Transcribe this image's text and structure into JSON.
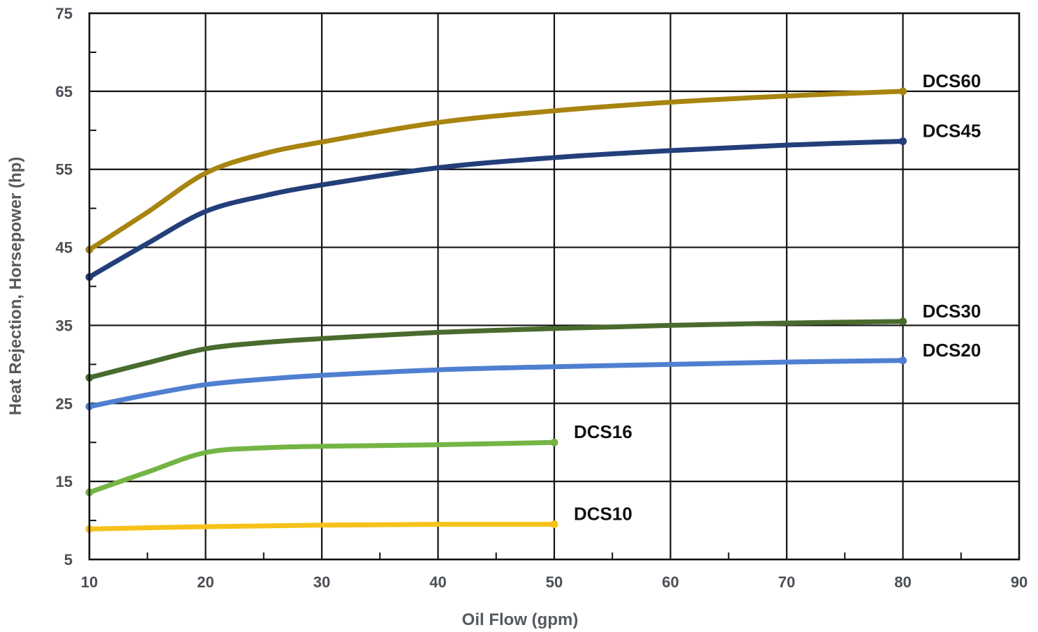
{
  "chart_data": {
    "type": "line",
    "title": "",
    "xlabel": "Oil Flow (gpm)",
    "ylabel": "Heat Rejection, Horsepower (hp)",
    "xlim": [
      10,
      90
    ],
    "ylim": [
      5,
      75
    ],
    "x_ticks": [
      "10",
      "20",
      "30",
      "40",
      "50",
      "60",
      "70",
      "80",
      "90"
    ],
    "y_ticks": [
      "5",
      "15",
      "25",
      "35",
      "45",
      "55",
      "65",
      "75"
    ],
    "grid": true,
    "legend": "inline labels at right end of each line",
    "series": [
      {
        "name": "DCS60",
        "color": "#a88410",
        "x": [
          10,
          15,
          20,
          25,
          30,
          40,
          50,
          60,
          70,
          80
        ],
        "y": [
          44.7,
          49.5,
          54.5,
          57.0,
          58.5,
          61.0,
          62.5,
          63.6,
          64.4,
          65.0
        ]
      },
      {
        "name": "DCS45",
        "color": "#233f7a",
        "x": [
          10,
          15,
          20,
          25,
          30,
          40,
          50,
          60,
          70,
          80
        ],
        "y": [
          41.2,
          45.5,
          49.6,
          51.6,
          53.0,
          55.2,
          56.5,
          57.4,
          58.1,
          58.6
        ]
      },
      {
        "name": "DCS30",
        "color": "#496b2e",
        "x": [
          10,
          15,
          20,
          25,
          30,
          40,
          50,
          60,
          70,
          80
        ],
        "y": [
          28.3,
          30.2,
          32.0,
          32.8,
          33.3,
          34.1,
          34.6,
          35.0,
          35.3,
          35.5
        ]
      },
      {
        "name": "DCS20",
        "color": "#4f7fd0",
        "x": [
          10,
          15,
          20,
          25,
          30,
          40,
          50,
          60,
          70,
          80
        ],
        "y": [
          24.6,
          26.1,
          27.4,
          28.1,
          28.6,
          29.3,
          29.7,
          30.0,
          30.3,
          30.5
        ]
      },
      {
        "name": "DCS16",
        "color": "#74b444",
        "x": [
          10,
          15,
          20,
          25,
          30,
          40,
          50
        ],
        "y": [
          13.6,
          16.2,
          18.7,
          19.3,
          19.5,
          19.7,
          20.0
        ]
      },
      {
        "name": "DCS10",
        "color": "#f6c21a",
        "x": [
          10,
          20,
          30,
          40,
          50
        ],
        "y": [
          8.9,
          9.2,
          9.4,
          9.5,
          9.5
        ]
      }
    ]
  }
}
